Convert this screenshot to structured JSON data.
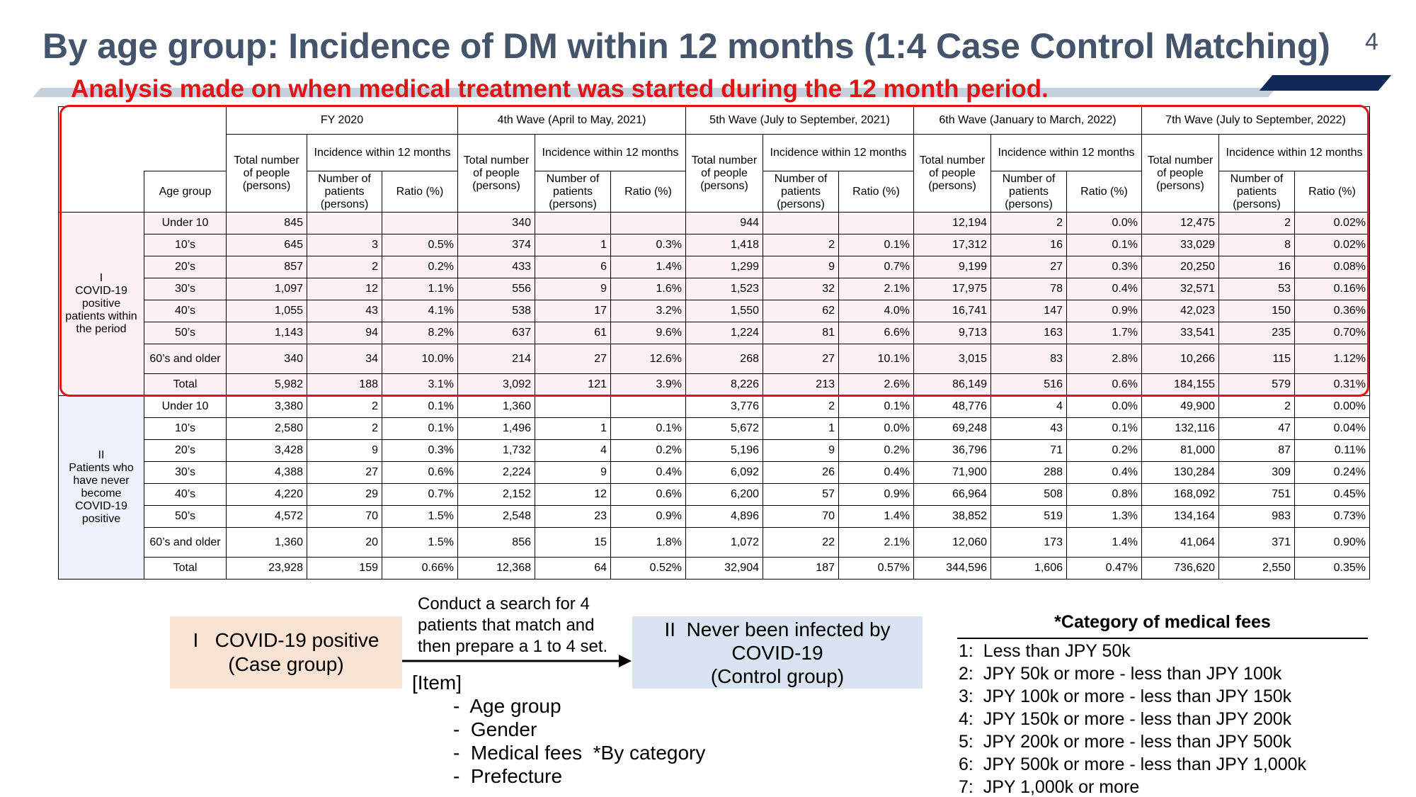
{
  "slide": {
    "title": "By age group: Incidence of DM within 12 months (1:4 Case Control Matching)",
    "page_number": "4",
    "subtitle": "Analysis made on when medical treatment was started during the 12 month period."
  },
  "table": {
    "age_group_header": "Age group",
    "periods": [
      {
        "name": "FY 2020",
        "total": "Total number of people (persons)",
        "incidence": "Incidence within 12 months",
        "patients": "Number of patients (persons)",
        "ratio": "Ratio (%)"
      },
      {
        "name": "4th Wave (April to May, 2021)",
        "total": "Total number of people (persons)",
        "incidence": "Incidence within 12 months",
        "patients": "Number of patients (persons)",
        "ratio": "Ratio (%)"
      },
      {
        "name": "5th Wave (July to September, 2021)",
        "total": "Total number of people (persons)",
        "incidence": "Incidence within 12 months",
        "patients": "Number of patients (persons)",
        "ratio": "Ratio (%)"
      },
      {
        "name": "6th Wave (January to March, 2022)",
        "total": "Total number of people (persons)",
        "incidence": "Incidence within 12 months",
        "patients": "Number of patients (persons)",
        "ratio": "Ratio (%)"
      },
      {
        "name": "7th Wave (July to September, 2022)",
        "total": "Total number of people (persons)",
        "incidence": "Incidence within 12 months",
        "patients": "Number of patients (persons)",
        "ratio": "Ratio (%)"
      }
    ],
    "groups": [
      {
        "label": "I\nCOVID-19 positive patients within the period",
        "rows": [
          {
            "age": "Under 10",
            "cells": [
              "845",
              "",
              "",
              "340",
              "",
              "",
              "944",
              "",
              "",
              "12,194",
              "2",
              "0.0%",
              "12,475",
              "2",
              "0.02%"
            ]
          },
          {
            "age": "10’s",
            "cells": [
              "645",
              "3",
              "0.5%",
              "374",
              "1",
              "0.3%",
              "1,418",
              "2",
              "0.1%",
              "17,312",
              "16",
              "0.1%",
              "33,029",
              "8",
              "0.02%"
            ]
          },
          {
            "age": "20’s",
            "cells": [
              "857",
              "2",
              "0.2%",
              "433",
              "6",
              "1.4%",
              "1,299",
              "9",
              "0.7%",
              "9,199",
              "27",
              "0.3%",
              "20,250",
              "16",
              "0.08%"
            ]
          },
          {
            "age": "30’s",
            "cells": [
              "1,097",
              "12",
              "1.1%",
              "556",
              "9",
              "1.6%",
              "1,523",
              "32",
              "2.1%",
              "17,975",
              "78",
              "0.4%",
              "32,571",
              "53",
              "0.16%"
            ]
          },
          {
            "age": "40’s",
            "cells": [
              "1,055",
              "43",
              "4.1%",
              "538",
              "17",
              "3.2%",
              "1,550",
              "62",
              "4.0%",
              "16,741",
              "147",
              "0.9%",
              "42,023",
              "150",
              "0.36%"
            ]
          },
          {
            "age": "50’s",
            "cells": [
              "1,143",
              "94",
              "8.2%",
              "637",
              "61",
              "9.6%",
              "1,224",
              "81",
              "6.6%",
              "9,713",
              "163",
              "1.7%",
              "33,541",
              "235",
              "0.70%"
            ]
          },
          {
            "age": "60’s and older",
            "cells": [
              "340",
              "34",
              "10.0%",
              "214",
              "27",
              "12.6%",
              "268",
              "27",
              "10.1%",
              "3,015",
              "83",
              "2.8%",
              "10,266",
              "115",
              "1.12%"
            ]
          },
          {
            "age": "Total",
            "cells": [
              "5,982",
              "188",
              "3.1%",
              "3,092",
              "121",
              "3.9%",
              "8,226",
              "213",
              "2.6%",
              "86,149",
              "516",
              "0.6%",
              "184,155",
              "579",
              "0.31%"
            ]
          }
        ]
      },
      {
        "label": "II\nPatients who have never become COVID-19 positive",
        "rows": [
          {
            "age": "Under 10",
            "cells": [
              "3,380",
              "2",
              "0.1%",
              "1,360",
              "",
              "",
              "3,776",
              "2",
              "0.1%",
              "48,776",
              "4",
              "0.0%",
              "49,900",
              "2",
              "0.00%"
            ]
          },
          {
            "age": "10’s",
            "cells": [
              "2,580",
              "2",
              "0.1%",
              "1,496",
              "1",
              "0.1%",
              "5,672",
              "1",
              "0.0%",
              "69,248",
              "43",
              "0.1%",
              "132,116",
              "47",
              "0.04%"
            ]
          },
          {
            "age": "20’s",
            "cells": [
              "3,428",
              "9",
              "0.3%",
              "1,732",
              "4",
              "0.2%",
              "5,196",
              "9",
              "0.2%",
              "36,796",
              "71",
              "0.2%",
              "81,000",
              "87",
              "0.11%"
            ]
          },
          {
            "age": "30’s",
            "cells": [
              "4,388",
              "27",
              "0.6%",
              "2,224",
              "9",
              "0.4%",
              "6,092",
              "26",
              "0.4%",
              "71,900",
              "288",
              "0.4%",
              "130,284",
              "309",
              "0.24%"
            ]
          },
          {
            "age": "40’s",
            "cells": [
              "4,220",
              "29",
              "0.7%",
              "2,152",
              "12",
              "0.6%",
              "6,200",
              "57",
              "0.9%",
              "66,964",
              "508",
              "0.8%",
              "168,092",
              "751",
              "0.45%"
            ]
          },
          {
            "age": "50’s",
            "cells": [
              "4,572",
              "70",
              "1.5%",
              "2,548",
              "23",
              "0.9%",
              "4,896",
              "70",
              "1.4%",
              "38,852",
              "519",
              "1.3%",
              "134,164",
              "983",
              "0.73%"
            ]
          },
          {
            "age": "60’s and older",
            "cells": [
              "1,360",
              "20",
              "1.5%",
              "856",
              "15",
              "1.8%",
              "1,072",
              "22",
              "2.1%",
              "12,060",
              "173",
              "1.4%",
              "41,064",
              "371",
              "0.90%"
            ]
          },
          {
            "age": "Total",
            "cells": [
              "23,928",
              "159",
              "0.66%",
              "12,368",
              "64",
              "0.52%",
              "32,904",
              "187",
              "0.57%",
              "344,596",
              "1,606",
              "0.47%",
              "736,620",
              "2,550",
              "0.35%"
            ]
          }
        ]
      }
    ]
  },
  "diagram": {
    "case_box": {
      "line1": "I   COVID-19 positive",
      "line2": "(Case group)"
    },
    "arrow_label": "Conduct a search for 4\npatients that match and\nthen prepare a 1 to 4 set.",
    "control_box": {
      "line1": "II  Never been infected by",
      "line2": "COVID-19",
      "line3": "(Control group)"
    },
    "item_heading": "[Item]",
    "items": [
      "-  Age group",
      "-  Gender",
      "-  Medical fees  *By category",
      "-  Prefecture"
    ]
  },
  "fees": {
    "title": "*Category of medical fees",
    "items": [
      "1:  Less than JPY 50k",
      "2:  JPY 50k or more - less than JPY 100k",
      "3:  JPY 100k or more - less than JPY 150k",
      "4:  JPY 150k or more - less than JPY 200k",
      "5:  JPY 200k or more - less than JPY 500k",
      "6:  JPY 500k or more - less than JPY 1,000k",
      "7:  JPY 1,000k or more"
    ]
  },
  "colors": {
    "title": "#44546a",
    "subtitle_red": "#e01414",
    "case_fill": "#fbe3d4",
    "control_fill": "#dae3f2",
    "group1_fill": "#fdf1f1",
    "group2_label_fill": "#edf2fa",
    "bar_light": "#c5d2de",
    "bar_dark": "#0f2a57"
  }
}
